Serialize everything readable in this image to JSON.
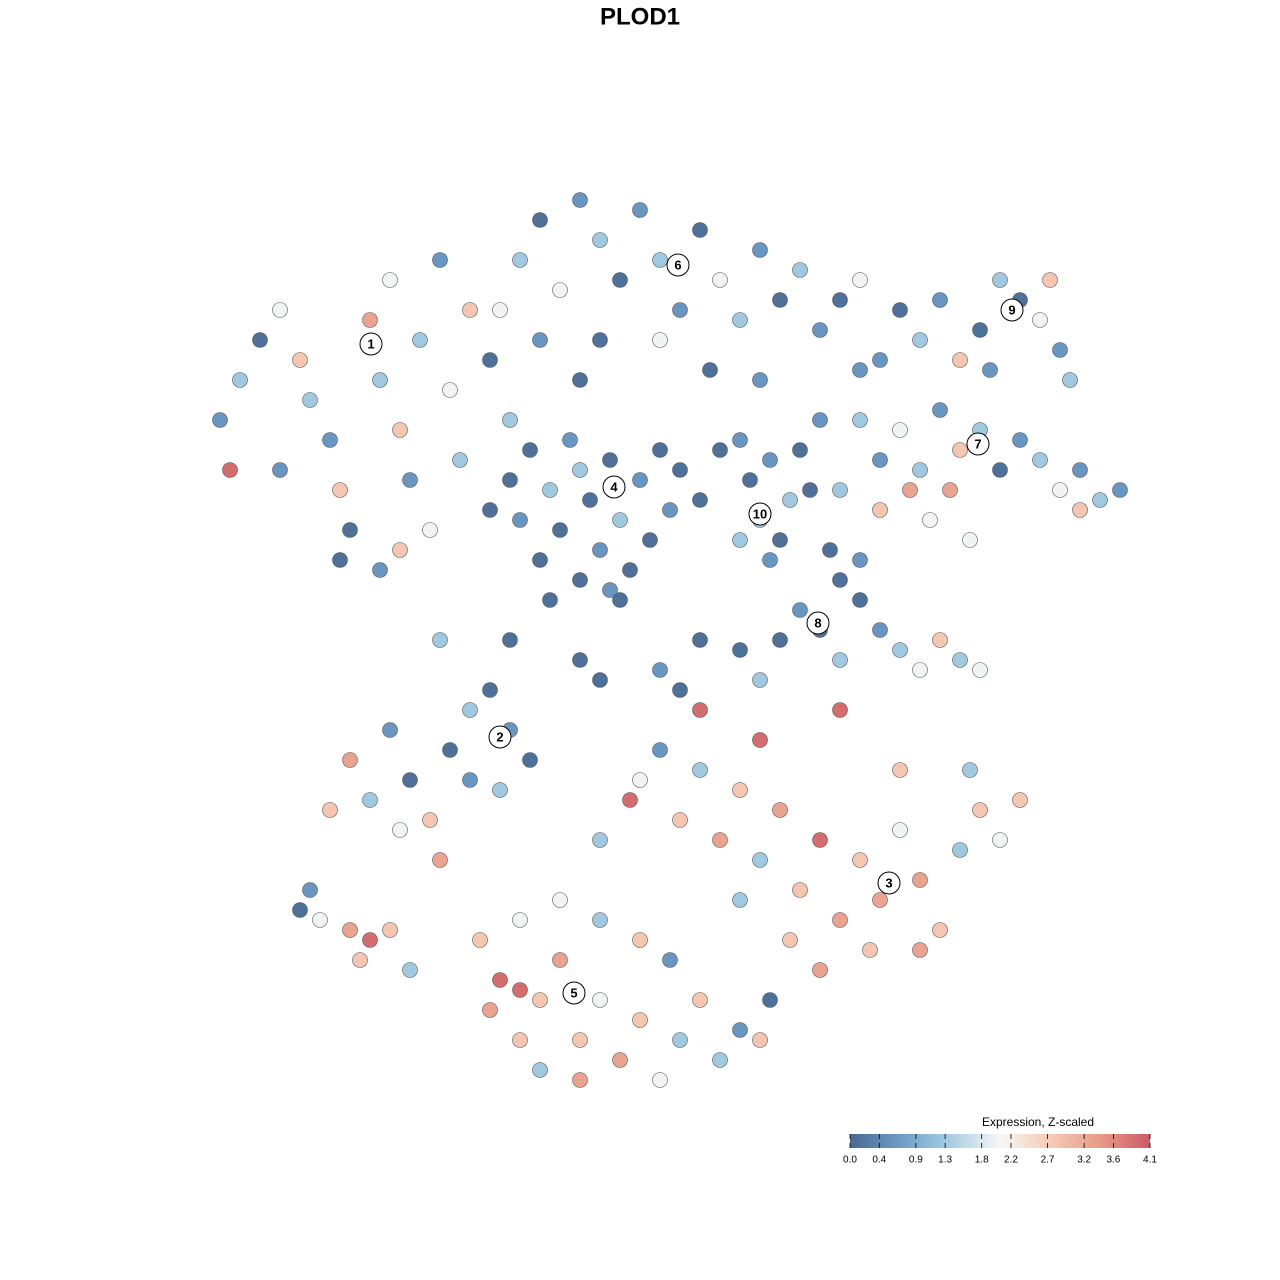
{
  "chart_data": {
    "type": "scatter",
    "title": "PLOD1",
    "xlim": [
      -45,
      50
    ],
    "ylim": [
      -46,
      46
    ],
    "x": [
      -42,
      -40,
      -38,
      -36,
      -34,
      -33,
      -31,
      -30,
      -29,
      -27,
      -26,
      -25,
      -24,
      -23,
      -22,
      -21,
      -20,
      -19,
      -18,
      -17,
      -15,
      -13,
      -41,
      -36,
      -30,
      -26,
      -24,
      -12,
      -10,
      -8,
      -6,
      -4,
      -2,
      0,
      2,
      4,
      6,
      8,
      10,
      12,
      14,
      16,
      18,
      20,
      -14,
      -10,
      -4,
      2,
      7,
      12,
      -6,
      22,
      -13,
      -12,
      -11,
      -10,
      -9,
      -8,
      -7,
      -6,
      -5,
      -4,
      -3,
      -2,
      -1,
      0,
      1,
      2,
      3,
      -6,
      -9,
      -3,
      4,
      6,
      8,
      10,
      -15,
      11,
      12,
      13,
      14,
      15,
      10,
      16,
      13,
      17,
      18,
      24,
      26,
      28,
      30,
      32,
      34,
      36,
      38,
      40,
      42,
      43,
      35,
      22,
      41,
      22,
      24,
      26,
      28,
      30,
      32,
      34,
      36,
      38,
      40,
      42,
      44,
      46,
      48,
      44,
      24,
      27,
      29,
      31,
      33,
      20,
      14,
      16,
      18,
      20,
      22,
      24,
      26,
      28,
      30,
      32,
      34,
      20,
      19,
      22,
      10,
      6,
      2,
      -4,
      -6,
      4,
      12,
      -13,
      -20,
      -2,
      -29,
      -27,
      -25,
      -23,
      -21,
      -19,
      -17,
      -15,
      -13,
      -11,
      -24,
      -20,
      -17,
      -31,
      -14,
      -34,
      -32,
      -29,
      -27,
      -25,
      -28,
      -23,
      -33,
      0,
      2,
      4,
      6,
      8,
      10,
      12,
      14,
      16,
      18,
      20,
      22,
      24,
      26,
      28,
      30,
      32,
      34,
      36,
      38,
      15,
      18,
      23,
      28,
      10,
      6,
      20,
      12,
      -1,
      -4,
      33,
      26,
      -16,
      -14,
      -12,
      -10,
      -8,
      -6,
      -4,
      -2,
      0,
      2,
      4,
      6,
      8,
      10,
      12,
      -12,
      -10,
      -6,
      -8,
      -4,
      0,
      3,
      -12,
      -15,
      13
    ],
    "y": [
      22,
      26,
      30,
      33,
      28,
      24,
      20,
      15,
      11,
      32,
      26,
      36,
      21,
      16,
      30,
      11,
      38,
      25,
      18,
      33,
      28,
      22,
      17,
      17,
      8,
      7,
      9,
      38,
      42,
      35,
      44,
      40,
      36,
      43,
      38,
      33,
      41,
      36,
      32,
      39,
      34,
      37,
      31,
      34,
      33,
      30,
      30,
      30,
      27,
      26,
      26,
      27,
      16,
      12,
      19,
      8,
      15,
      11,
      20,
      6,
      14,
      9,
      18,
      12,
      7,
      16,
      10,
      19,
      13,
      17,
      4,
      5,
      17,
      14,
      19,
      20,
      13,
      16,
      12,
      18,
      10,
      14,
      10,
      19,
      8,
      15,
      22,
      28,
      33,
      30,
      34,
      28,
      31,
      36,
      34,
      32,
      29,
      26,
      27,
      36,
      36,
      22,
      18,
      21,
      17,
      23,
      19,
      21,
      17,
      20,
      18,
      15,
      17,
      14,
      15,
      13,
      13,
      15,
      12,
      15,
      10,
      15,
      0,
      3,
      1,
      -2,
      4,
      1,
      -1,
      -3,
      0,
      -2,
      -3,
      6,
      9,
      8,
      -1,
      0,
      -3,
      -4,
      -2,
      -5,
      -4,
      0,
      0,
      4,
      -12,
      -16,
      -9,
      -14,
      -18,
      -11,
      -7,
      -5,
      -9,
      -12,
      -19,
      -22,
      -14,
      -17,
      -15,
      -27,
      -28,
      -29,
      -30,
      -29,
      -32,
      -33,
      -25,
      -14,
      -11,
      -18,
      -13,
      -20,
      -15,
      -22,
      -17,
      -25,
      -20,
      -28,
      -22,
      -26,
      -19,
      -24,
      -29,
      -21,
      -17,
      -20,
      -16,
      -30,
      -33,
      -31,
      -31,
      -26,
      -7,
      -7,
      -10,
      -16,
      -20,
      -13,
      -13,
      -30,
      -34,
      -28,
      -36,
      -32,
      -40,
      -36,
      -42,
      -38,
      -44,
      -40,
      -36,
      -42,
      -39,
      -40,
      -40,
      -43,
      -44,
      -26,
      -28,
      -30,
      -32,
      -35,
      -37,
      -36
    ],
    "values": [
      0.6,
      1.3,
      0.1,
      2.0,
      2.8,
      1.3,
      0.6,
      2.8,
      0.1,
      3.3,
      1.3,
      2.0,
      2.8,
      0.6,
      1.3,
      2.0,
      0.6,
      2.0,
      1.3,
      2.8,
      0.1,
      1.3,
      3.9,
      0.6,
      0.1,
      0.6,
      2.8,
      1.3,
      0.1,
      2.0,
      0.6,
      1.3,
      0.1,
      0.6,
      1.3,
      0.6,
      0.1,
      2.0,
      1.3,
      0.6,
      0.1,
      1.3,
      0.6,
      0.1,
      2.0,
      0.6,
      0.1,
      2.0,
      0.1,
      0.6,
      0.1,
      0.6,
      0.1,
      0.6,
      0.1,
      0.1,
      1.3,
      0.1,
      0.6,
      0.1,
      0.1,
      0.6,
      0.1,
      1.3,
      0.1,
      0.6,
      0.1,
      0.1,
      0.6,
      1.3,
      0.1,
      0.6,
      0.1,
      0.1,
      0.1,
      0.6,
      0.1,
      0.1,
      1.3,
      0.6,
      0.1,
      1.3,
      1.3,
      0.1,
      0.6,
      0.1,
      0.6,
      0.6,
      0.1,
      1.3,
      0.6,
      2.8,
      0.1,
      1.3,
      0.1,
      2.0,
      0.6,
      1.3,
      0.6,
      2.0,
      2.8,
      1.3,
      0.6,
      2.0,
      1.3,
      0.6,
      2.8,
      1.3,
      0.1,
      0.6,
      1.3,
      2.0,
      0.6,
      1.3,
      0.6,
      2.8,
      2.8,
      3.3,
      2.0,
      3.3,
      2.0,
      1.3,
      0.1,
      0.6,
      0.1,
      1.3,
      0.1,
      0.6,
      1.3,
      2.0,
      2.8,
      1.3,
      2.0,
      0.1,
      0.1,
      0.6,
      0.1,
      0.1,
      0.6,
      0.1,
      0.1,
      0.1,
      1.3,
      0.1,
      1.3,
      0.1,
      3.3,
      1.3,
      0.6,
      0.1,
      2.8,
      0.1,
      1.3,
      0.1,
      0.6,
      0.1,
      2.0,
      3.3,
      0.6,
      2.8,
      1.3,
      0.1,
      2.0,
      3.3,
      3.9,
      2.8,
      2.8,
      1.3,
      0.6,
      2.0,
      0.6,
      2.8,
      1.3,
      3.3,
      2.8,
      1.3,
      3.3,
      2.8,
      3.9,
      3.3,
      2.8,
      3.3,
      2.0,
      3.3,
      2.8,
      1.3,
      2.8,
      2.0,
      2.8,
      2.8,
      3.3,
      2.8,
      3.3,
      1.3,
      3.9,
      3.9,
      3.9,
      3.9,
      1.3,
      1.3,
      2.8,
      2.8,
      3.9,
      2.0,
      2.8,
      3.3,
      2.8,
      2.0,
      3.3,
      2.8,
      2.0,
      1.3,
      2.8,
      1.3,
      0.6,
      2.8,
      2.8,
      1.3,
      3.3,
      2.0,
      1.3,
      2.8,
      0.6,
      3.9,
      3.3,
      0.1
    ],
    "clusters": [
      {
        "label": "1",
        "x": -26.9,
        "y": 29.6
      },
      {
        "label": "2",
        "x": -14,
        "y": -9.7
      },
      {
        "label": "3",
        "x": 24.9,
        "y": -24.3
      },
      {
        "label": "4",
        "x": -2.6,
        "y": 15.3
      },
      {
        "label": "5",
        "x": -6.6,
        "y": -35.3
      },
      {
        "label": "6",
        "x": 3.8,
        "y": 37.5
      },
      {
        "label": "7",
        "x": 33.8,
        "y": 19.6
      },
      {
        "label": "8",
        "x": 17.8,
        "y": 1.7
      },
      {
        "label": "9",
        "x": 37.2,
        "y": 33
      },
      {
        "label": "10",
        "x": 12,
        "y": 12.6
      }
    ],
    "colorscale": [
      "#4a6890",
      "#6d9cc7",
      "#a6cde2",
      "#f7f7f7",
      "#f6cbb5",
      "#e79b88",
      "#cc5a65"
    ],
    "colorbar": {
      "title": "Expression, Z-scaled",
      "lim": [
        0,
        4.1
      ],
      "ticks": [
        {
          "value": 0,
          "label": "0.0"
        },
        0.4,
        0.9,
        1.3,
        1.8,
        2.2,
        2.7,
        3.2,
        3.6,
        4.1
      ]
    }
  }
}
